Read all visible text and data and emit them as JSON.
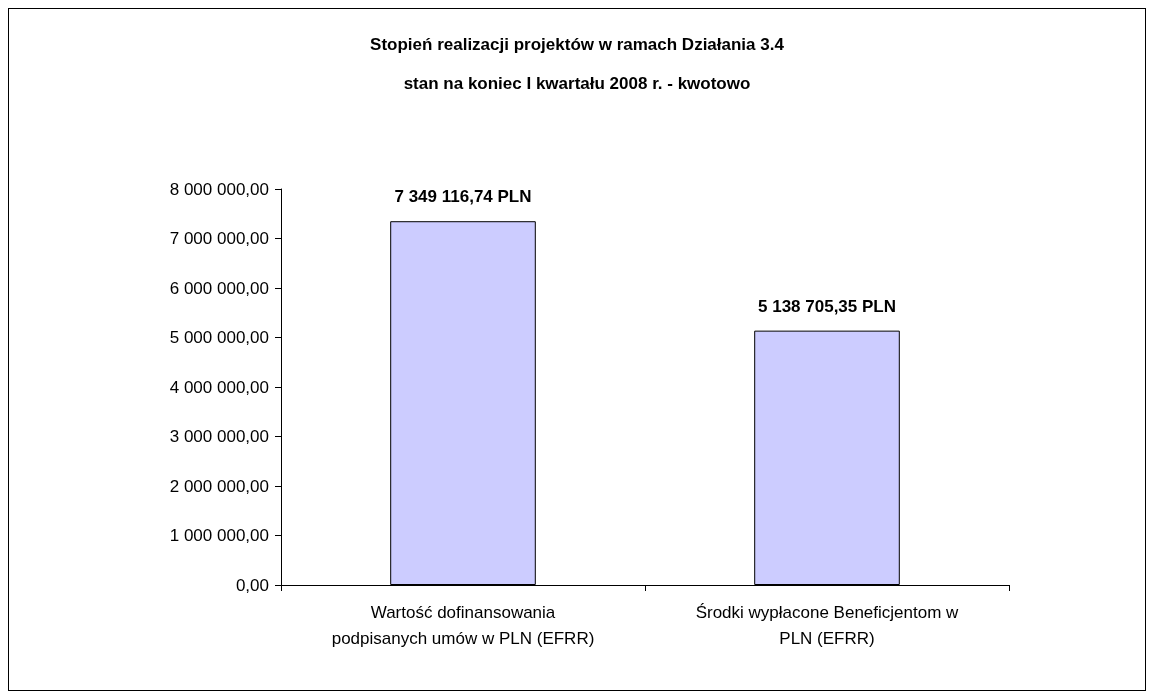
{
  "chart_data": {
    "type": "bar",
    "title": "Stopień realizacji projektów w ramach Działania 3.4",
    "subtitle": "stan na koniec I kwartału 2008 r. - kwotowo",
    "categories": [
      "Wartość dofinansowania\npodpisanych umów w PLN (EFRR)",
      "Środki wypłacone Beneficjentom w\nPLN (EFRR)"
    ],
    "values": [
      7349116.74,
      5138705.35
    ],
    "value_labels": [
      "7 349 116,74 PLN",
      "5 138 705,35 PLN"
    ],
    "color": "#ccccff",
    "ylim": [
      0,
      8000000
    ],
    "yticks": [
      {
        "value": 0,
        "label": "0,00"
      },
      {
        "value": 1000000,
        "label": "1 000 000,00"
      },
      {
        "value": 2000000,
        "label": "2 000 000,00"
      },
      {
        "value": 3000000,
        "label": "3 000 000,00"
      },
      {
        "value": 4000000,
        "label": "4 000 000,00"
      },
      {
        "value": 5000000,
        "label": "5 000 000,00"
      },
      {
        "value": 6000000,
        "label": "6 000 000,00"
      },
      {
        "value": 7000000,
        "label": "7 000 000,00"
      },
      {
        "value": 8000000,
        "label": "8 000 000,00"
      }
    ],
    "grid": false
  }
}
